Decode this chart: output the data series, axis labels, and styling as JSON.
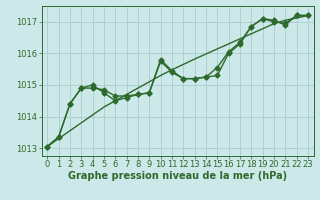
{
  "x": [
    0,
    1,
    2,
    3,
    4,
    5,
    6,
    7,
    8,
    9,
    10,
    11,
    12,
    13,
    14,
    15,
    16,
    17,
    18,
    19,
    20,
    21,
    22,
    23
  ],
  "y_data1": [
    1013.05,
    1013.35,
    1014.4,
    1014.9,
    1014.9,
    1014.85,
    1014.65,
    1014.65,
    1014.7,
    1014.75,
    1015.8,
    1015.45,
    1015.2,
    1015.2,
    1015.25,
    1015.3,
    1016.0,
    1016.3,
    1016.85,
    1017.1,
    1017.05,
    1016.9,
    1017.2,
    1017.2
  ],
  "y_data2": [
    1013.05,
    1013.35,
    1014.4,
    1014.9,
    1015.0,
    1014.75,
    1014.5,
    1014.6,
    1014.7,
    1014.75,
    1015.75,
    1015.4,
    1015.2,
    1015.2,
    1015.25,
    1015.55,
    1016.05,
    1016.35,
    1016.85,
    1017.1,
    1017.0,
    1016.95,
    1017.2,
    1017.2
  ],
  "y_trend": [
    1013.05,
    1013.3,
    1013.55,
    1013.8,
    1014.05,
    1014.3,
    1014.5,
    1014.7,
    1014.9,
    1015.1,
    1015.3,
    1015.48,
    1015.65,
    1015.82,
    1015.98,
    1016.14,
    1016.3,
    1016.46,
    1016.62,
    1016.78,
    1016.94,
    1017.05,
    1017.12,
    1017.2
  ],
  "bg_color": "#cce8e8",
  "line_color": "#2d6a2d",
  "grid_color": "#aacccc",
  "xlabel": "Graphe pression niveau de la mer (hPa)",
  "ylim": [
    1012.75,
    1017.5
  ],
  "yticks": [
    1013,
    1014,
    1015,
    1016,
    1017
  ],
  "xticks": [
    0,
    1,
    2,
    3,
    4,
    5,
    6,
    7,
    8,
    9,
    10,
    11,
    12,
    13,
    14,
    15,
    16,
    17,
    18,
    19,
    20,
    21,
    22,
    23
  ],
  "marker": "D",
  "markersize": 2.5,
  "linewidth": 1.0,
  "tick_fontsize": 6.0,
  "xlabel_fontsize": 7.0
}
